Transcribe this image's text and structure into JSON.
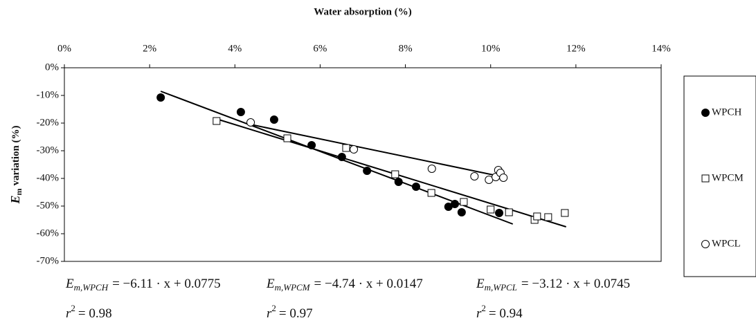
{
  "chart_data": {
    "type": "scatter",
    "x_label": "Water absorption (%)",
    "y_label": {
      "symbol": "E",
      "subscript": "m",
      "text": "variation (%)"
    },
    "xlim": [
      0,
      14
    ],
    "xticks": [
      {
        "value": 0,
        "label": "0%"
      },
      {
        "value": 2,
        "label": "2%"
      },
      {
        "value": 4,
        "label": "4%"
      },
      {
        "value": 6,
        "label": "6%"
      },
      {
        "value": 8,
        "label": "8%"
      },
      {
        "value": 10,
        "label": "10%"
      },
      {
        "value": 12,
        "label": "12%"
      },
      {
        "value": 14,
        "label": "14%"
      }
    ],
    "ylim": [
      -70,
      0
    ],
    "yticks": [
      {
        "value": 0,
        "label": "0%"
      },
      {
        "value": -10,
        "label": "-10%"
      },
      {
        "value": -20,
        "label": "-20%"
      },
      {
        "value": -30,
        "label": "-30%"
      },
      {
        "value": -40,
        "label": "-40%"
      },
      {
        "value": -50,
        "label": "-50%"
      },
      {
        "value": -60,
        "label": "-60%"
      },
      {
        "value": -70,
        "label": "-70%"
      }
    ],
    "legend": "right",
    "series": [
      {
        "name": "WPCH",
        "marker": "filled-circle",
        "color": "#000000",
        "x": [
          2.26,
          4.14,
          4.92,
          5.8,
          6.51,
          7.1,
          7.84,
          8.25,
          9.01,
          9.16,
          9.32,
          10.2
        ],
        "values": [
          -10.75,
          -16,
          -18.75,
          -28,
          -32.25,
          -37.25,
          -41.25,
          -43,
          -50.25,
          -49.25,
          -52.25,
          -52.5
        ],
        "trend_x": [
          2.26,
          10.52
        ],
        "trend_values": [
          -8.5,
          -56.5
        ],
        "equation": {
          "symbol": "E",
          "subscript": "m,WPCH",
          "rhs": "= −6.11 · x + 0.0775"
        },
        "r2": {
          "symbol": "r",
          "exponent": "2",
          "rhs": "= 0.98"
        }
      },
      {
        "name": "WPCM",
        "marker": "open-square",
        "color": "#000000",
        "x": [
          3.57,
          5.23,
          6.61,
          7.76,
          8.61,
          9.37,
          10.0,
          10.43,
          11.03,
          11.09,
          11.35,
          11.74
        ],
        "values": [
          -19.25,
          -25.5,
          -29,
          -38.5,
          -45.25,
          -48.5,
          -51.25,
          -52.25,
          -55,
          -53.75,
          -54,
          -52.5
        ],
        "trend_x": [
          3.57,
          11.77
        ],
        "trend_values": [
          -18.5,
          -57.5
        ],
        "equation": {
          "symbol": "E",
          "subscript": "m,WPCM",
          "rhs": "= −4.74 · x + 0.0147"
        },
        "r2": {
          "symbol": "r",
          "exponent": "2",
          "rhs": "= 0.97"
        }
      },
      {
        "name": "WPCL",
        "marker": "open-circle",
        "color": "#000000",
        "x": [
          4.37,
          6.79,
          8.62,
          9.62,
          9.96,
          10.12,
          10.18,
          10.23,
          10.3
        ],
        "values": [
          -19.75,
          -29.5,
          -36.5,
          -39.25,
          -40.5,
          -39.5,
          -37,
          -38,
          -39.75
        ],
        "trend_x": [
          4.37,
          10.3
        ],
        "trend_values": [
          -20.5,
          -39.5
        ],
        "equation": {
          "symbol": "E",
          "subscript": "m,WPCL",
          "rhs": "= −3.12 · x + 0.0745"
        },
        "r2": {
          "symbol": "r",
          "exponent": "2",
          "rhs": "= 0.94"
        }
      }
    ]
  }
}
